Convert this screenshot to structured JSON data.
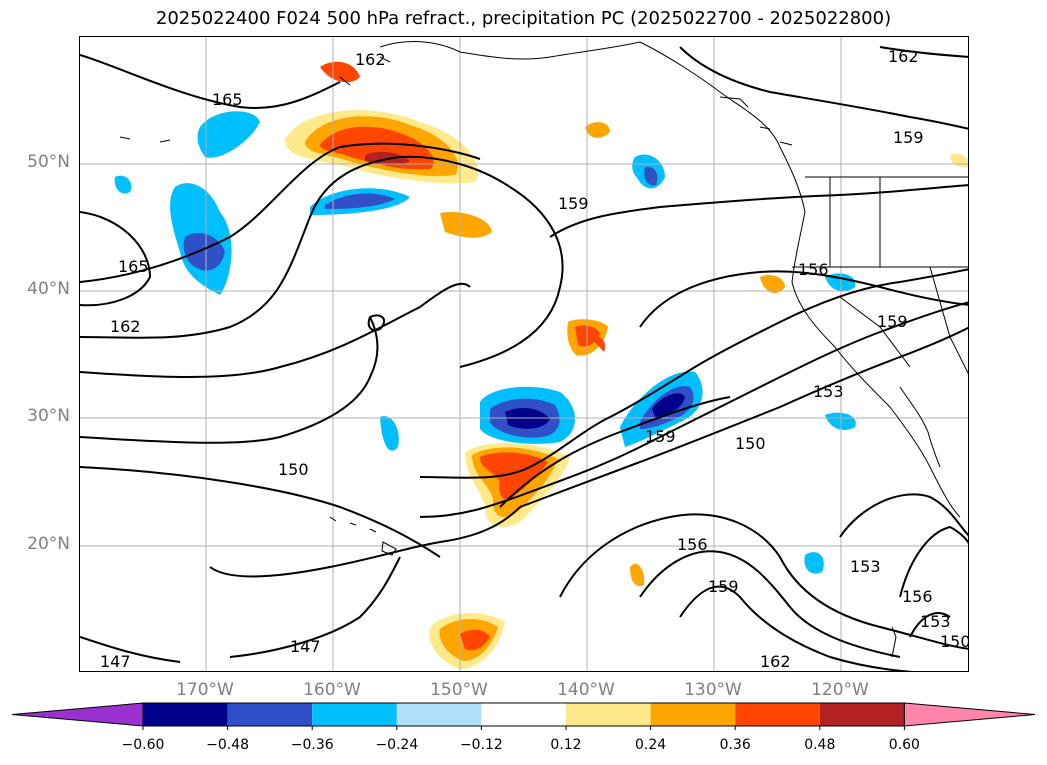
{
  "title": "2025022400 F024 500 hPa refract., precipitation PC (2025022700 - 2025022800)",
  "latitude_labels": [
    "50°N",
    "40°N",
    "30°N",
    "20°N"
  ],
  "longitude_labels": [
    "170°W",
    "160°W",
    "150°W",
    "140°W",
    "130°W",
    "120°W"
  ],
  "contour_labels": [
    "165",
    "162",
    "162",
    "165",
    "159",
    "159",
    "162",
    "156",
    "159",
    "150",
    "153",
    "159",
    "150",
    "156",
    "159",
    "153",
    "162",
    "156",
    "153",
    "150",
    "147",
    "147"
  ],
  "colorbar": {
    "ticks": [
      "−0.60",
      "−0.48",
      "−0.36",
      "−0.24",
      "−0.12",
      "0.12",
      "0.24",
      "0.36",
      "0.48",
      "0.60"
    ],
    "colors": [
      "#9b30d0",
      "#00008b",
      "#3050c8",
      "#00bfff",
      "#aee0fa",
      "#ffffff",
      "#ffe98a",
      "#ffa500",
      "#ff4500",
      "#b22222",
      "#ff85aa"
    ]
  },
  "colors": {
    "grid": "#b0b0b0",
    "contour": "#000000",
    "coast": "#000000",
    "tick_label": "#808080"
  }
}
